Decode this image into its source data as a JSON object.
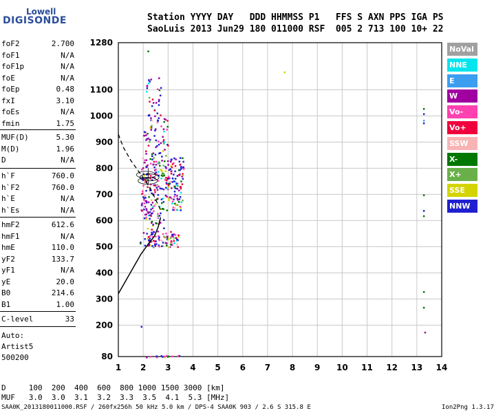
{
  "logo": {
    "line1": "Lowell",
    "line2": "DIGISONDE"
  },
  "header": {
    "row1": "Station YYYY DAY   DDD HHMMSS P1   FFS S AXN PPS IGA PS",
    "row2": "SaoLuis 2013 Jun29 180 011000 RSF  005 2 713 100 10+ 22"
  },
  "params": {
    "group1": [
      {
        "name": "foF2",
        "value": "2.700"
      },
      {
        "name": "foF1",
        "value": "N/A"
      },
      {
        "name": "foF1p",
        "value": "N/A"
      },
      {
        "name": "foE",
        "value": "N/A"
      },
      {
        "name": "foEp",
        "value": "0.48"
      },
      {
        "name": "fxI",
        "value": "3.10"
      },
      {
        "name": "foEs",
        "value": "N/A"
      },
      {
        "name": "fmin",
        "value": "1.75"
      }
    ],
    "group2": [
      {
        "name": "MUF(D)",
        "value": "5.30"
      },
      {
        "name": "M(D)",
        "value": "1.96"
      },
      {
        "name": "D",
        "value": "N/A"
      }
    ],
    "group3": [
      {
        "name": "h`F",
        "value": "760.0"
      },
      {
        "name": "h`F2",
        "value": "760.0"
      },
      {
        "name": "h`E",
        "value": "N/A"
      },
      {
        "name": "h`Es",
        "value": "N/A"
      }
    ],
    "group4": [
      {
        "name": "hmF2",
        "value": "612.6"
      },
      {
        "name": "hmF1",
        "value": "N/A"
      },
      {
        "name": "hmE",
        "value": "110.0"
      },
      {
        "name": "yF2",
        "value": "133.7"
      },
      {
        "name": "yF1",
        "value": "N/A"
      },
      {
        "name": "yE",
        "value": "20.0"
      },
      {
        "name": "B0",
        "value": "214.6"
      },
      {
        "name": "B1",
        "value": "1.00"
      }
    ],
    "clevel": {
      "name": "C-level",
      "value": "33"
    },
    "auto": [
      "Auto:",
      "Artist5",
      "500200"
    ]
  },
  "legend": [
    {
      "label": "NoVal",
      "color": "#a0a0a0"
    },
    {
      "label": "NNE",
      "color": "#00e5ee"
    },
    {
      "label": "E",
      "color": "#3d9ef0"
    },
    {
      "label": "W",
      "color": "#a000a0"
    },
    {
      "label": "Vo-",
      "color": "#ff40b0"
    },
    {
      "label": "Vo+",
      "color": "#f0003c"
    },
    {
      "label": "SSW",
      "color": "#f8b4b4"
    },
    {
      "label": "X-",
      "color": "#007800"
    },
    {
      "label": "X+",
      "color": "#6ab04a"
    },
    {
      "label": "SSE",
      "color": "#d4d400"
    },
    {
      "label": "NNW",
      "color": "#2020d0"
    }
  ],
  "chart_data": {
    "type": "scatter",
    "xlim": [
      1,
      14
    ],
    "ylim": [
      80,
      1280
    ],
    "x_ticks": [
      1,
      2,
      3,
      4,
      5,
      6,
      7,
      8,
      9,
      10,
      11,
      12,
      13,
      14
    ],
    "y_ticks": [
      80,
      200,
      300,
      400,
      500,
      600,
      700,
      800,
      900,
      1000,
      1100,
      1280
    ],
    "grid": true,
    "legend_position": "right",
    "profile_curve": {
      "x": [
        1.0,
        1.3,
        1.6,
        1.9,
        2.2,
        2.45,
        2.6,
        2.7
      ],
      "y": [
        320,
        370,
        420,
        470,
        510,
        540,
        575,
        612
      ]
    },
    "dashed_curve": {
      "x": [
        1.0,
        1.2,
        1.5,
        1.8,
        2.1,
        2.3,
        2.5,
        2.7
      ],
      "y": [
        930,
        880,
        830,
        790,
        750,
        720,
        680,
        640
      ]
    },
    "clusters": [
      {
        "x": [
          1.85,
          3.4
        ],
        "y": [
          500,
          560
        ],
        "n": 90
      },
      {
        "x": [
          1.9,
          3.6
        ],
        "y": [
          640,
          850
        ],
        "n": 260
      },
      {
        "x": [
          2.0,
          3.0
        ],
        "y": [
          850,
          1000
        ],
        "n": 60
      },
      {
        "x": [
          2.1,
          2.7
        ],
        "y": [
          1000,
          1150
        ],
        "n": 30
      },
      {
        "x": [
          2.0,
          2.8
        ],
        "y": [
          560,
          640
        ],
        "n": 35
      },
      {
        "x": [
          2.1,
          3.7
        ],
        "y": [
          80,
          86
        ],
        "n": 16
      }
    ],
    "points": [
      {
        "x": 2.17,
        "y": 1250,
        "c": "#007800"
      },
      {
        "x": 7.65,
        "y": 1170,
        "c": "#d4d400"
      },
      {
        "x": 13.25,
        "y": 1030,
        "c": "#007800"
      },
      {
        "x": 13.25,
        "y": 1010,
        "c": "#2020d0"
      },
      {
        "x": 13.25,
        "y": 985,
        "c": "#3d9ef0"
      },
      {
        "x": 13.25,
        "y": 975,
        "c": "#2020d0"
      },
      {
        "x": 13.25,
        "y": 700,
        "c": "#007800"
      },
      {
        "x": 13.25,
        "y": 640,
        "c": "#2020d0"
      },
      {
        "x": 13.25,
        "y": 620,
        "c": "#007800"
      },
      {
        "x": 13.25,
        "y": 330,
        "c": "#007800"
      },
      {
        "x": 13.25,
        "y": 270,
        "c": "#007800"
      },
      {
        "x": 13.3,
        "y": 175,
        "c": "#a000a0"
      },
      {
        "x": 1.9,
        "y": 197,
        "c": "#2020d0"
      }
    ]
  },
  "footer": {
    "d_row": "D     100  200  400  600  800 1000 1500 3000 [km]",
    "muf_row": "MUF   3.0  3.0  3.1  3.2  3.3  3.5  4.1  5.3 [MHz]",
    "file_info": "SAA0K_2013180011000.RSF / 260fx256h 50 kHz 5.0 km / DPS-4 SAA0K 903 / 2.6 S 315.8 E",
    "version": "Ion2Png 1.3.17"
  }
}
